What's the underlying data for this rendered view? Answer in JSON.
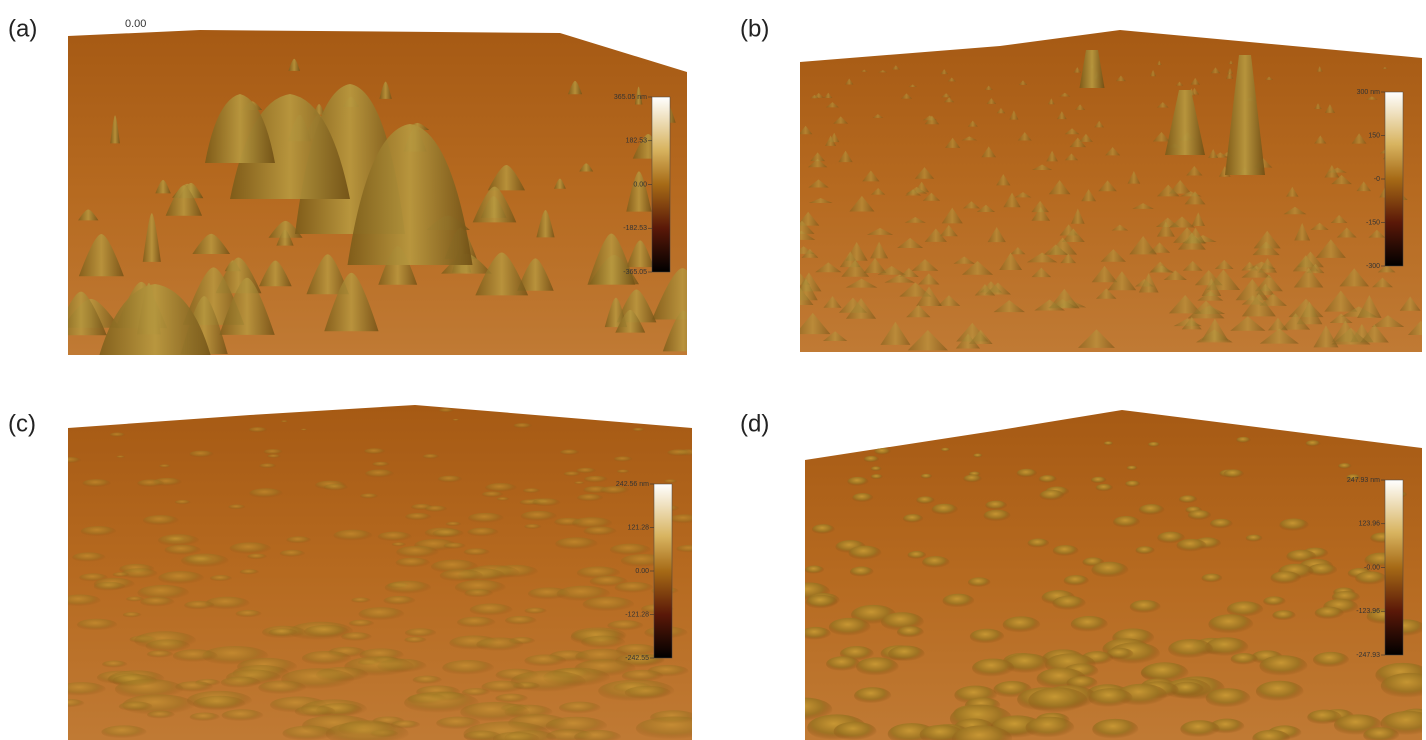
{
  "panels": [
    {
      "label": "(a)",
      "axis_label": "0.00",
      "colorbar": {
        "ticks": [
          "365.05 nm",
          "182.53",
          "0.00",
          "-182.53",
          "-365.05"
        ]
      }
    },
    {
      "label": "(b)",
      "colorbar": {
        "ticks": [
          "300 nm",
          "150",
          "-0",
          "-150",
          "-300"
        ]
      }
    },
    {
      "label": "(c)",
      "colorbar": {
        "ticks": [
          "242.56 nm",
          "121.28",
          "0.00",
          "-121.28",
          "-242.55"
        ]
      }
    },
    {
      "label": "(d)",
      "colorbar": {
        "ticks": [
          "247.93 nm",
          "123.96",
          "-0.00",
          "-123.96",
          "-247.93"
        ]
      }
    }
  ]
}
